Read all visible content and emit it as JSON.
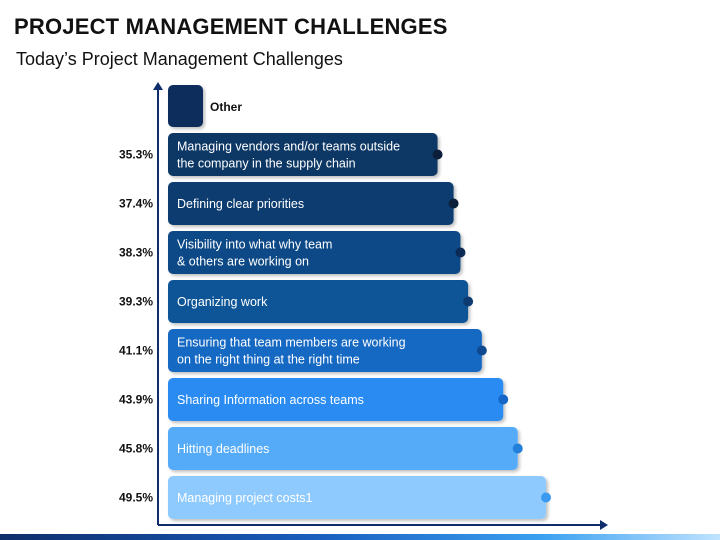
{
  "header": {
    "title": "PROJECT MANAGEMENT CHALLENGES",
    "subtitle": "Today’s Project Management Challenges"
  },
  "chart_data": {
    "type": "bar",
    "orientation": "horizontal",
    "legend": {
      "label": "Other",
      "color": "#0b2e5c"
    },
    "xlim": [
      0,
      55
    ],
    "items": [
      {
        "label": [
          "Managing vendors and/or teams outside",
          "the company in the supply chain"
        ],
        "value": 35.3,
        "value_label": "35.3%",
        "color": "#0c3766",
        "dot": "#0b1e3a"
      },
      {
        "label": [
          "Defining clear priorities"
        ],
        "value": 37.4,
        "value_label": "37.4%",
        "color": "#0d3d70",
        "dot": "#0b1e3a"
      },
      {
        "label": [
          "Visibility into what why team",
          "& others are working on"
        ],
        "value": 38.3,
        "value_label": "38.3%",
        "color": "#0f4a86",
        "dot": "#0c2a55"
      },
      {
        "label": [
          "Organizing work"
        ],
        "value": 39.3,
        "value_label": "39.3%",
        "color": "#105596",
        "dot": "#0d3a70"
      },
      {
        "label": [
          "Ensuring that team members are working",
          "on the right thing at the right time"
        ],
        "value": 41.1,
        "value_label": "41.1%",
        "color": "#1569c2",
        "dot": "#0f4a90"
      },
      {
        "label": [
          "Sharing Information across teams"
        ],
        "value": 43.9,
        "value_label": "43.9%",
        "color": "#2b8cf2",
        "dot": "#1666c8"
      },
      {
        "label": [
          "Hitting deadlines"
        ],
        "value": 45.8,
        "value_label": "45.8%",
        "color": "#55abf8",
        "dot": "#2280da"
      },
      {
        "label": [
          "Managing project costs1"
        ],
        "value": 49.5,
        "value_label": "49.5%",
        "color": "#8fcaff",
        "dot": "#3b9af0",
        "label_color": "#111111"
      }
    ]
  }
}
